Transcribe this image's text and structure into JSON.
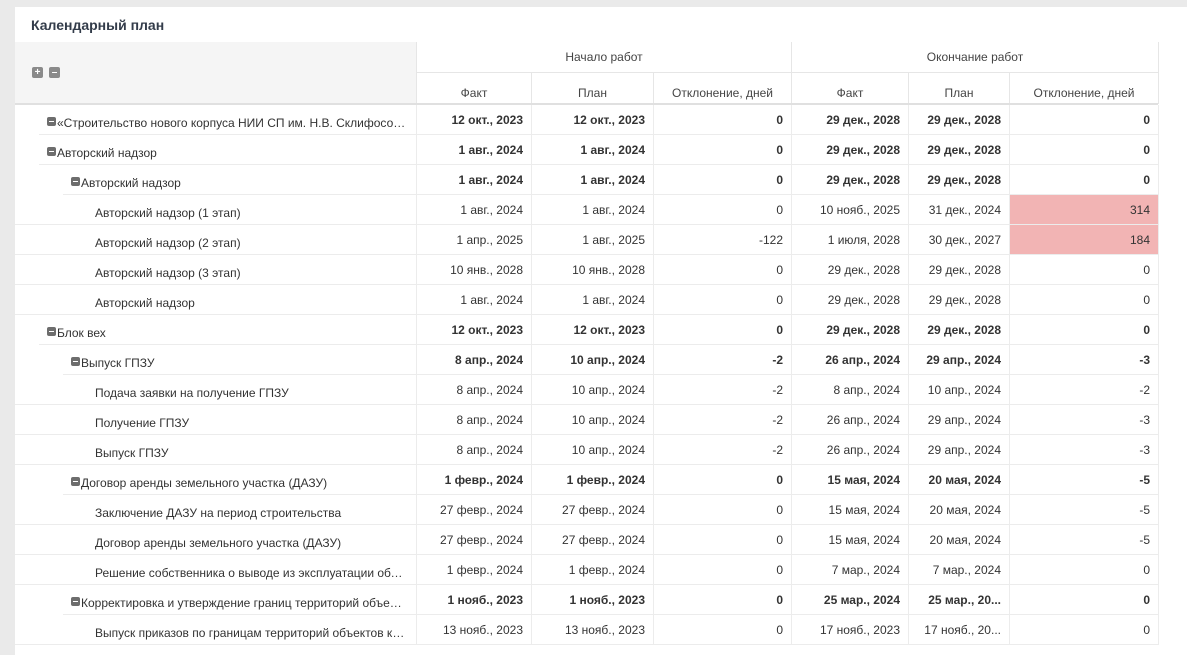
{
  "title": "Календарный план",
  "groups": {
    "start": "Начало работ",
    "end": "Окончание работ"
  },
  "columns": [
    "Факт",
    "План",
    "Отклонение, дней",
    "Факт",
    "План",
    "Отклонение, дней"
  ],
  "highlight_color": "#f2b4b4",
  "rows": [
    {
      "level": 0,
      "toggle": true,
      "bold": true,
      "name": "«Строительство нового корпуса НИИ СП им. Н.В. Склифосовс...",
      "cells": [
        "12 окт., 2023",
        "12 окт., 2023",
        "0",
        "29 дек., 2028",
        "29 дек., 2028",
        "0"
      ]
    },
    {
      "level": 0,
      "toggle": true,
      "bold": true,
      "name": "Авторский надзор",
      "cells": [
        "1 авг., 2024",
        "1 авг., 2024",
        "0",
        "29 дек., 2028",
        "29 дек., 2028",
        "0"
      ]
    },
    {
      "level": 1,
      "toggle": true,
      "bold": true,
      "name": "Авторский надзор",
      "cells": [
        "1 авг., 2024",
        "1 авг., 2024",
        "0",
        "29 дек., 2028",
        "29 дек., 2028",
        "0"
      ]
    },
    {
      "level": 2,
      "toggle": false,
      "bold": false,
      "name": "Авторский надзор (1 этап)",
      "cells": [
        "1 авг., 2024",
        "1 авг., 2024",
        "0",
        "10 нояб., 2025",
        "31 дек., 2024",
        "314"
      ],
      "hl": [
        5
      ]
    },
    {
      "level": 2,
      "toggle": false,
      "bold": false,
      "name": "Авторский надзор (2 этап)",
      "cells": [
        "1 апр., 2025",
        "1 авг., 2025",
        "-122",
        "1 июля, 2028",
        "30 дек., 2027",
        "184"
      ],
      "hl": [
        5
      ]
    },
    {
      "level": 2,
      "toggle": false,
      "bold": false,
      "name": "Авторский надзор (3 этап)",
      "cells": [
        "10 янв., 2028",
        "10 янв., 2028",
        "0",
        "29 дек., 2028",
        "29 дек., 2028",
        "0"
      ]
    },
    {
      "level": 2,
      "toggle": false,
      "bold": false,
      "name": "Авторский надзор",
      "cells": [
        "1 авг., 2024",
        "1 авг., 2024",
        "0",
        "29 дек., 2028",
        "29 дек., 2028",
        "0"
      ]
    },
    {
      "level": 0,
      "toggle": true,
      "bold": true,
      "name": "Блок вех",
      "cells": [
        "12 окт., 2023",
        "12 окт., 2023",
        "0",
        "29 дек., 2028",
        "29 дек., 2028",
        "0"
      ]
    },
    {
      "level": 1,
      "toggle": true,
      "bold": true,
      "name": "Выпуск ГПЗУ",
      "cells": [
        "8 апр., 2024",
        "10 апр., 2024",
        "-2",
        "26 апр., 2024",
        "29 апр., 2024",
        "-3"
      ]
    },
    {
      "level": 2,
      "toggle": false,
      "bold": false,
      "name": "Подача заявки на получение ГПЗУ",
      "cells": [
        "8 апр., 2024",
        "10 апр., 2024",
        "-2",
        "8 апр., 2024",
        "10 апр., 2024",
        "-2"
      ]
    },
    {
      "level": 2,
      "toggle": false,
      "bold": false,
      "name": "Получение ГПЗУ",
      "cells": [
        "8 апр., 2024",
        "10 апр., 2024",
        "-2",
        "26 апр., 2024",
        "29 апр., 2024",
        "-3"
      ]
    },
    {
      "level": 2,
      "toggle": false,
      "bold": false,
      "name": "Выпуск ГПЗУ",
      "cells": [
        "8 апр., 2024",
        "10 апр., 2024",
        "-2",
        "26 апр., 2024",
        "29 апр., 2024",
        "-3"
      ]
    },
    {
      "level": 1,
      "toggle": true,
      "bold": true,
      "name": "Договор аренды земельного участка (ДАЗУ)",
      "cells": [
        "1 февр., 2024",
        "1 февр., 2024",
        "0",
        "15 мая, 2024",
        "20 мая, 2024",
        "-5"
      ]
    },
    {
      "level": 2,
      "toggle": false,
      "bold": false,
      "name": "Заключение ДАЗУ на период строительства",
      "cells": [
        "27 февр., 2024",
        "27 февр., 2024",
        "0",
        "15 мая, 2024",
        "20 мая, 2024",
        "-5"
      ]
    },
    {
      "level": 2,
      "toggle": false,
      "bold": false,
      "name": "Договор аренды земельного участка (ДАЗУ)",
      "cells": [
        "27 февр., 2024",
        "27 февр., 2024",
        "0",
        "15 мая, 2024",
        "20 мая, 2024",
        "-5"
      ]
    },
    {
      "level": 2,
      "toggle": false,
      "bold": false,
      "name": "Решение собственника о выводе из эксплуатации объе...",
      "cells": [
        "1 февр., 2024",
        "1 февр., 2024",
        "0",
        "7 мар., 2024",
        "7 мар., 2024",
        "0"
      ]
    },
    {
      "level": 1,
      "toggle": true,
      "bold": true,
      "name": "Корректировка и утверждение границ территорий объект...",
      "cells": [
        "1 нояб., 2023",
        "1 нояб., 2023",
        "0",
        "25 мар., 2024",
        "25 мар., 20...",
        "0"
      ]
    },
    {
      "level": 2,
      "toggle": false,
      "bold": false,
      "name": "Выпуск приказов по границам территорий объектов кул...",
      "cells": [
        "13 нояб., 2023",
        "13 нояб., 2023",
        "0",
        "17 нояб., 2023",
        "17 нояб., 20...",
        "0"
      ]
    }
  ]
}
